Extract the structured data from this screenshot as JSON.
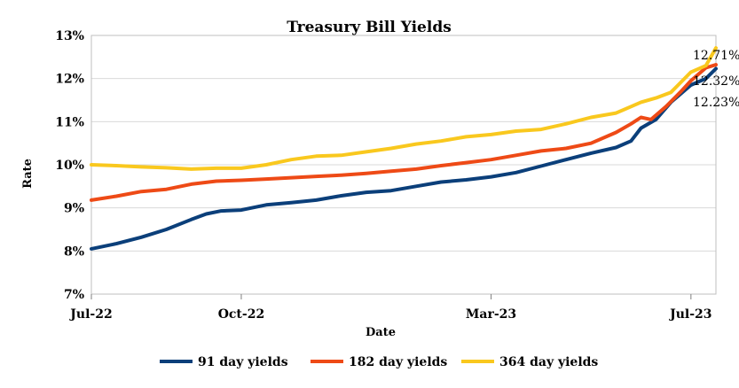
{
  "chart_data": {
    "type": "line",
    "title": "Treasury Bill Yields",
    "xlabel": "Date",
    "ylabel": "Rate",
    "ylim": [
      7,
      13
    ],
    "yticks": [
      7,
      8,
      9,
      10,
      11,
      12,
      13
    ],
    "ytick_labels": [
      "7%",
      "8%",
      "9%",
      "10%",
      "11%",
      "12%",
      "13%"
    ],
    "xlim": [
      0,
      12.5
    ],
    "xticks": [
      {
        "x": 0,
        "label": "Jul-22"
      },
      {
        "x": 3,
        "label": "Oct-22"
      },
      {
        "x": 8,
        "label": "Mar-23"
      },
      {
        "x": 12,
        "label": "Jul-23"
      }
    ],
    "x_unit": "months since Jul-22",
    "legend_position": "bottom",
    "series": [
      {
        "name": "91 day yields",
        "color": "#0b3f7a",
        "end_label": "12.23%",
        "points": [
          [
            0,
            8.05
          ],
          [
            0.5,
            8.17
          ],
          [
            1,
            8.32
          ],
          [
            1.5,
            8.5
          ],
          [
            2,
            8.73
          ],
          [
            2.3,
            8.86
          ],
          [
            2.6,
            8.93
          ],
          [
            3,
            8.95
          ],
          [
            3.5,
            9.07
          ],
          [
            4,
            9.12
          ],
          [
            4.5,
            9.18
          ],
          [
            5,
            9.28
          ],
          [
            5.5,
            9.36
          ],
          [
            6,
            9.4
          ],
          [
            6.5,
            9.5
          ],
          [
            7,
            9.6
          ],
          [
            7.5,
            9.65
          ],
          [
            8,
            9.72
          ],
          [
            8.5,
            9.82
          ],
          [
            9,
            9.97
          ],
          [
            9.5,
            10.12
          ],
          [
            10,
            10.27
          ],
          [
            10.5,
            10.4
          ],
          [
            10.8,
            10.55
          ],
          [
            11,
            10.85
          ],
          [
            11.3,
            11.05
          ],
          [
            11.6,
            11.45
          ],
          [
            12,
            11.85
          ],
          [
            12.3,
            12.0
          ],
          [
            12.5,
            12.23
          ]
        ]
      },
      {
        "name": "182 day yields",
        "color": "#ee4a16",
        "end_label": "12.32%",
        "points": [
          [
            0,
            9.18
          ],
          [
            0.5,
            9.27
          ],
          [
            1,
            9.38
          ],
          [
            1.5,
            9.43
          ],
          [
            2,
            9.55
          ],
          [
            2.5,
            9.62
          ],
          [
            3,
            9.64
          ],
          [
            3.5,
            9.67
          ],
          [
            4,
            9.7
          ],
          [
            4.5,
            9.73
          ],
          [
            5,
            9.76
          ],
          [
            5.5,
            9.8
          ],
          [
            6,
            9.85
          ],
          [
            6.5,
            9.9
          ],
          [
            7,
            9.98
          ],
          [
            7.5,
            10.05
          ],
          [
            8,
            10.12
          ],
          [
            8.5,
            10.22
          ],
          [
            9,
            10.32
          ],
          [
            9.5,
            10.38
          ],
          [
            10,
            10.5
          ],
          [
            10.5,
            10.75
          ],
          [
            10.8,
            10.95
          ],
          [
            11,
            11.1
          ],
          [
            11.2,
            11.05
          ],
          [
            11.5,
            11.35
          ],
          [
            11.8,
            11.7
          ],
          [
            12,
            11.95
          ],
          [
            12.3,
            12.25
          ],
          [
            12.5,
            12.32
          ]
        ]
      },
      {
        "name": "364 day yields",
        "color": "#f9c81e",
        "end_label": "12.71%",
        "points": [
          [
            0,
            10.0
          ],
          [
            0.5,
            9.98
          ],
          [
            1,
            9.95
          ],
          [
            1.5,
            9.93
          ],
          [
            2,
            9.9
          ],
          [
            2.5,
            9.92
          ],
          [
            3,
            9.92
          ],
          [
            3.5,
            10.0
          ],
          [
            4,
            10.12
          ],
          [
            4.5,
            10.2
          ],
          [
            5,
            10.22
          ],
          [
            5.5,
            10.3
          ],
          [
            6,
            10.38
          ],
          [
            6.5,
            10.48
          ],
          [
            7,
            10.55
          ],
          [
            7.5,
            10.65
          ],
          [
            8,
            10.7
          ],
          [
            8.5,
            10.78
          ],
          [
            9,
            10.82
          ],
          [
            9.5,
            10.95
          ],
          [
            10,
            11.1
          ],
          [
            10.5,
            11.2
          ],
          [
            10.8,
            11.35
          ],
          [
            11,
            11.45
          ],
          [
            11.3,
            11.55
          ],
          [
            11.6,
            11.68
          ],
          [
            12,
            12.15
          ],
          [
            12.3,
            12.3
          ],
          [
            12.5,
            12.71
          ]
        ]
      }
    ]
  }
}
